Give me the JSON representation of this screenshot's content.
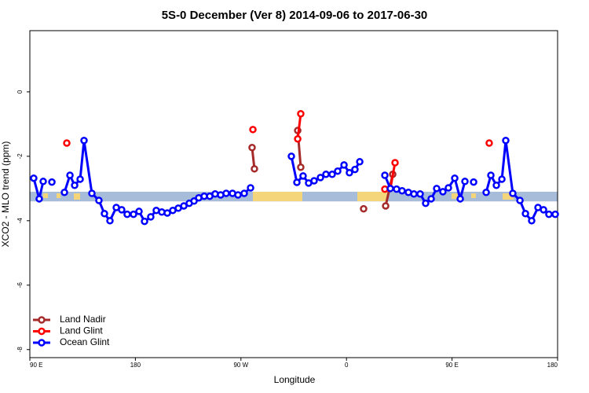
{
  "chart_data": {
    "type": "line",
    "title": "5S-0 December (Ver 8)   2014-09-06 to 2017-06-30",
    "xlabel": "Longitude",
    "ylabel": "XCO2 - MLO trend (ppm)",
    "xlim": [
      90,
      540
    ],
    "xticks": [
      {
        "value": 90,
        "label": "90 E"
      },
      {
        "value": 180,
        "label": "180"
      },
      {
        "value": 270,
        "label": "90 W"
      },
      {
        "value": 360,
        "label": "0"
      },
      {
        "value": 450,
        "label": "90 E"
      },
      {
        "value": 540,
        "label": "180"
      }
    ],
    "ylim": [
      -8.25,
      1.9
    ],
    "yticks": [
      -8,
      -6,
      -4,
      -2,
      0
    ],
    "band": [
      -3.4,
      -3.1
    ],
    "band_color": "#a7bcd9",
    "legend": "bottom-left",
    "series": [
      {
        "name": "Land Nadir",
        "color": "#a52a2a",
        "x": [
          279.5,
          281.5,
          null,
          318.4,
          321.0,
          null,
          374.6,
          null,
          393.4,
          399.4
        ],
        "values": [
          -1.73,
          -2.39,
          null,
          -1.2,
          -2.34,
          null,
          -3.63,
          null,
          -3.54,
          -2.56
        ]
      },
      {
        "name": "Land Glint",
        "color": "#ff0000",
        "x": [
          121.5,
          null,
          280.2,
          null,
          318.4,
          321.0,
          null,
          392.7,
          397.4,
          401.4,
          null,
          481.7
        ],
        "values": [
          -1.59,
          null,
          -1.17,
          null,
          -1.46,
          -0.68,
          null,
          -3.02,
          -3.0,
          -2.2,
          null,
          -1.59
        ]
      },
      {
        "name": "Ocean Glint",
        "color": "#0000ff",
        "x": [
          93.3,
          98,
          101.4,
          null,
          108.8,
          null,
          119.5,
          124.2,
          128.2,
          132.9,
          136.2,
          142.9,
          148.9,
          153.6,
          158.3,
          163.7,
          168.3,
          173,
          178.4,
          183.1,
          187.8,
          193.1,
          197.8,
          202.5,
          207.2,
          211.9,
          216.6,
          221.3,
          225.9,
          230,
          234,
          238.7,
          243.4,
          248,
          252.7,
          257.4,
          262.8,
          267.5,
          272.8,
          278.2,
          null,
          313,
          317.7,
          323,
          327.7,
          332.4,
          337.8,
          342.5,
          347.8,
          352.5,
          357.9,
          362.5,
          367.2,
          371.3,
          null,
          392.7,
          397.4,
          402.7,
          407.4,
          412.8,
          417.5,
          422.8,
          427.5,
          432.2,
          436.9,
          442.2,
          446.9,
          452.3,
          457,
          461,
          null,
          468.4,
          null,
          479.1,
          483.1,
          487.8,
          492.5,
          495.8,
          501.8,
          507.9,
          512.6,
          517.9,
          523.3,
          528,
          532.6,
          538
        ],
        "values": [
          -2.68,
          -3.32,
          -2.78,
          null,
          -2.8,
          null,
          -3.12,
          -2.59,
          -2.9,
          -2.71,
          -1.51,
          -3.15,
          -3.37,
          -3.78,
          -4.0,
          -3.59,
          -3.66,
          -3.8,
          -3.8,
          -3.71,
          -4.02,
          -3.88,
          -3.68,
          -3.73,
          -3.76,
          -3.68,
          -3.61,
          -3.54,
          -3.46,
          -3.39,
          -3.29,
          -3.24,
          -3.24,
          -3.17,
          -3.2,
          -3.15,
          -3.15,
          -3.2,
          -3.15,
          -2.98,
          null,
          -2.0,
          -2.81,
          -2.61,
          -2.83,
          -2.76,
          -2.66,
          -2.56,
          -2.56,
          -2.46,
          -2.27,
          -2.51,
          -2.41,
          -2.17,
          null,
          -2.59,
          -3.0,
          -3.02,
          -3.07,
          -3.12,
          -3.17,
          -3.17,
          -3.46,
          -3.32,
          -3.0,
          -3.1,
          -2.98,
          -2.68,
          -3.32,
          -2.78,
          null,
          -2.8,
          null,
          -3.12,
          -2.59,
          -2.9,
          -2.71,
          -1.51,
          -3.15,
          -3.37,
          -3.78,
          -4.0,
          -3.59,
          -3.66,
          -3.8,
          -3.8
        ]
      }
    ]
  }
}
